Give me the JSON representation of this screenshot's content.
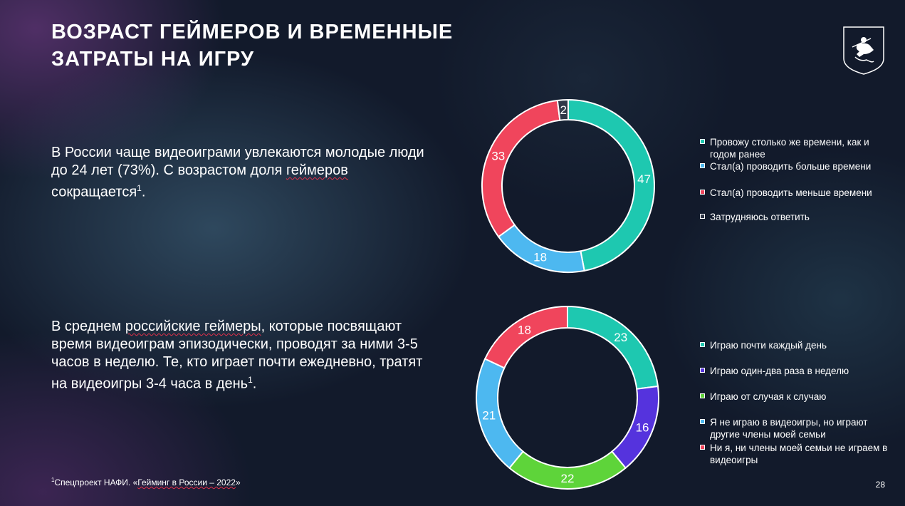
{
  "title": {
    "line1": "ВОЗРАСТ ГЕЙМЕРОВ И ВРЕМЕННЫЕ",
    "line2": "ЗАТРАТЫ НА ИГРУ"
  },
  "paragraph1": {
    "before": "В России чаще видеоиграми увлекаются молодые люди до 24 лет (73%). С возрастом доля ",
    "underlined": "геймеров",
    "after": " сокращается",
    "ref": "1",
    "end": "."
  },
  "paragraph2": {
    "before": "В среднем ",
    "underlined": "российские геймеры",
    "after": ", которые посвящают время видеоиграм эпизодически, проводят за ними 3-5 часов в неделю. Те, кто играет почти ежедневно, тратят на видеоигры 3-4 часа в день",
    "ref": "1",
    "end": "."
  },
  "footnote": {
    "ref": "1",
    "prefix": "Спецпроект НАФИ. «",
    "source": "Гейминг в России – 2022",
    "suffix": "»"
  },
  "page_number": "28",
  "emblem": {
    "icon": "moscow-coat-of-arms-icon"
  },
  "chart_data": [
    {
      "type": "pie",
      "variant": "donut",
      "categories": [
        "Провожу столько же времени, как и годом ранее",
        "Стал(а) проводить больше времени",
        "Стал(а) проводить меньше времени",
        "Затрудняюсь ответить"
      ],
      "values": [
        47,
        18,
        33,
        2
      ],
      "colors": [
        "#1ec8b0",
        "#4db8f0",
        "#f0455c",
        "#303848"
      ],
      "legend": "right"
    },
    {
      "type": "pie",
      "variant": "donut",
      "categories": [
        "Играю почти каждый день",
        "Играю один-два раза в неделю",
        "Играю от случая к случаю",
        "Я не играю в видеоигры, но играют другие члены моей семьи",
        "Ни я, ни члены моей семьи не играем в видеоигры"
      ],
      "values": [
        23,
        16,
        22,
        21,
        18
      ],
      "colors": [
        "#1ec8b0",
        "#5533dd",
        "#5ed43a",
        "#4db8f0",
        "#f0455c"
      ],
      "legend": "right"
    }
  ]
}
